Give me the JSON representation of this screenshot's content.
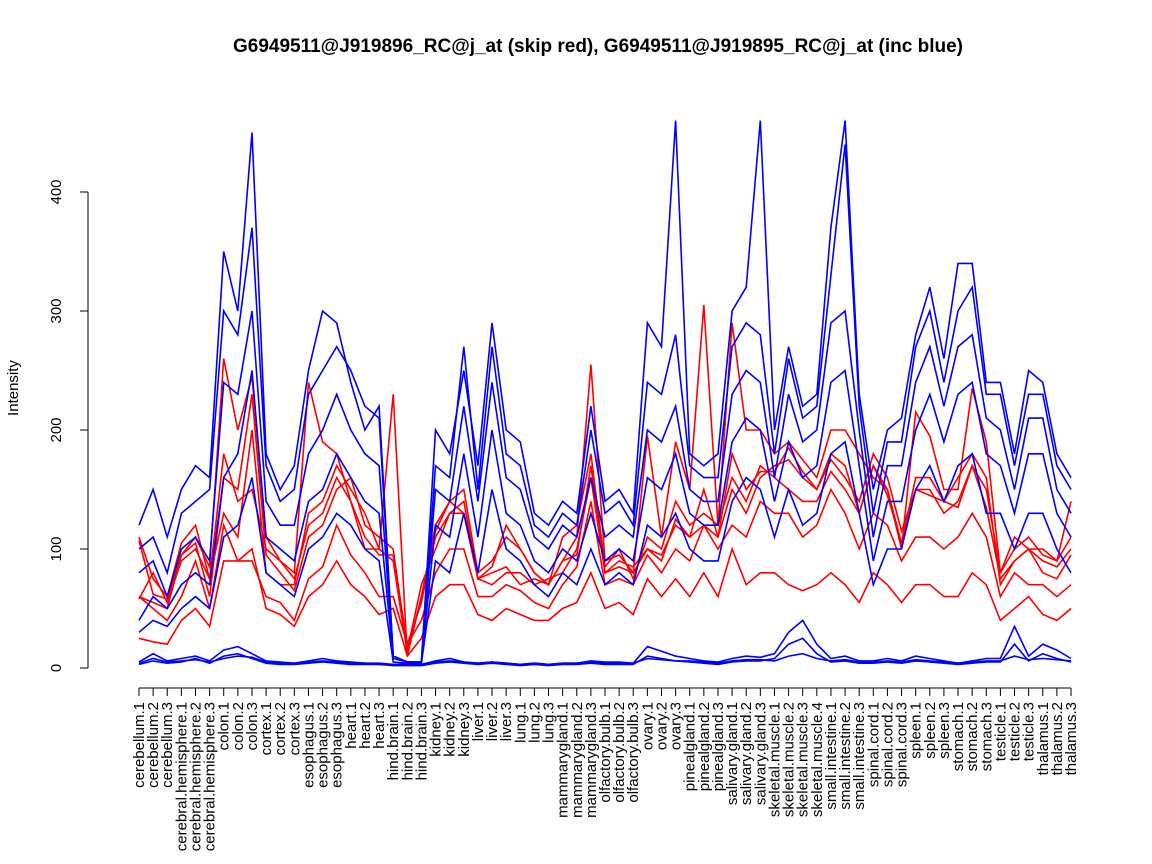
{
  "chart_data": {
    "type": "line",
    "title": "G6949511@J919896_RC@j_at (skip red), G6949511@J919895_RC@j_at (inc blue)",
    "xlabel": "",
    "ylabel": "Intensity",
    "ylim": [
      0,
      470
    ],
    "yticks": [
      0,
      100,
      200,
      300,
      400
    ],
    "grid": false,
    "colors": {
      "skip": "#ff0000",
      "inc": "#0000ff"
    },
    "categories": [
      "cerebellum.1",
      "cerebellum.2",
      "cerebellum.3",
      "cerebral.hemisphere.1",
      "cerebral.hemisphere.2",
      "cerebral.hemisphere.3",
      "colon.1",
      "colon.2",
      "colon.3",
      "cortex.1",
      "cortex.2",
      "cortex.3",
      "esophagus.1",
      "esophagus.2",
      "esophagus.3",
      "heart.1",
      "heart.2",
      "heart.3",
      "hind.brain.1",
      "hind.brain.2",
      "hind.brain.3",
      "kidney.1",
      "kidney.2",
      "kidney.3",
      "liver.1",
      "liver.2",
      "liver.3",
      "lung.1",
      "lung.2",
      "lung.3",
      "mammarygland.1",
      "mammarygland.2",
      "mammarygland.3",
      "olfactory.bulb.1",
      "olfactory.bulb.2",
      "olfactory.bulb.3",
      "ovary.1",
      "ovary.2",
      "ovary.3",
      "pinealgland.1",
      "pinealgland.2",
      "pinealgland.3",
      "salivary.gland.1",
      "salivary.gland.2",
      "salivary.gland.3",
      "skeletal.muscle.1",
      "skeletal.muscle.2",
      "skeletal.muscle.3",
      "skeletal.muscle.4",
      "small.intestine.1",
      "small.intestine.2",
      "small.intestine.3",
      "spinal.cord.1",
      "spinal.cord.2",
      "spinal.cord.3",
      "spleen.1",
      "spleen.2",
      "spleen.3",
      "stomach.1",
      "stomach.2",
      "stomach.3",
      "testicle.1",
      "testicle.2",
      "testicle.3",
      "thalamus.1",
      "thalamus.2",
      "thalamus.3"
    ],
    "series": [
      {
        "group": "skip",
        "values": [
          107,
          62,
          58,
          95,
          105,
          60,
          160,
          150,
          230,
          95,
          80,
          65,
          110,
          120,
          150,
          160,
          120,
          110,
          100,
          15,
          70,
          100,
          130,
          140,
          75,
          70,
          80,
          80,
          70,
          75,
          80,
          100,
          160,
          80,
          90,
          85,
          100,
          95,
          120,
          110,
          120,
          110,
          150,
          130,
          160,
          170,
          175,
          160,
          150,
          175,
          160,
          140,
          180,
          160,
          115,
          150,
          150,
          130,
          140,
          170,
          150,
          80,
          100,
          110,
          95,
          90,
          110
        ]
      },
      {
        "group": "skip",
        "values": [
          58,
          80,
          55,
          90,
          100,
          75,
          130,
          110,
          200,
          80,
          70,
          70,
          130,
          140,
          170,
          150,
          130,
          100,
          90,
          12,
          60,
          120,
          140,
          150,
          80,
          90,
          110,
          100,
          80,
          70,
          110,
          120,
          180,
          85,
          100,
          75,
          110,
          100,
          140,
          120,
          130,
          120,
          160,
          140,
          170,
          160,
          150,
          140,
          140,
          165,
          150,
          130,
          170,
          150,
          105,
          160,
          160,
          140,
          160,
          180,
          160,
          70,
          90,
          100,
          90,
          85,
          100
        ]
      },
      {
        "group": "skip",
        "values": [
          60,
          55,
          50,
          95,
          110,
          85,
          260,
          200,
          245,
          110,
          90,
          80,
          240,
          190,
          180,
          140,
          100,
          100,
          230,
          10,
          60,
          110,
          130,
          130,
          75,
          85,
          120,
          100,
          80,
          70,
          90,
          110,
          255,
          90,
          95,
          80,
          195,
          110,
          190,
          150,
          305,
          120,
          290,
          200,
          200,
          180,
          190,
          175,
          160,
          200,
          200,
          180,
          160,
          150,
          100,
          215,
          195,
          150,
          150,
          235,
          190,
          80,
          110,
          100,
          100,
          90,
          140
        ]
      },
      {
        "group": "skip",
        "values": [
          110,
          75,
          60,
          105,
          120,
          75,
          180,
          140,
          150,
          100,
          90,
          75,
          120,
          130,
          160,
          140,
          110,
          95,
          95,
          20,
          55,
          115,
          140,
          130,
          75,
          80,
          85,
          70,
          75,
          70,
          90,
          95,
          170,
          80,
          85,
          80,
          100,
          90,
          125,
          110,
          150,
          110,
          180,
          150,
          165,
          165,
          185,
          165,
          150,
          180,
          170,
          130,
          170,
          145,
          105,
          150,
          145,
          140,
          135,
          170,
          135,
          75,
          90,
          100,
          80,
          75,
          95
        ]
      },
      {
        "group": "skip",
        "values": [
          60,
          50,
          40,
          60,
          90,
          50,
          120,
          90,
          90,
          60,
          55,
          40,
          75,
          85,
          120,
          95,
          80,
          60,
          60,
          20,
          40,
          80,
          100,
          100,
          60,
          60,
          70,
          65,
          55,
          50,
          70,
          85,
          140,
          70,
          75,
          70,
          95,
          80,
          100,
          90,
          120,
          100,
          120,
          110,
          140,
          130,
          130,
          110,
          120,
          150,
          130,
          100,
          130,
          120,
          90,
          110,
          110,
          100,
          110,
          130,
          110,
          60,
          80,
          70,
          70,
          60,
          70
        ]
      },
      {
        "group": "skip",
        "values": [
          25,
          22,
          20,
          40,
          50,
          35,
          90,
          90,
          100,
          50,
          45,
          35,
          60,
          70,
          90,
          70,
          60,
          45,
          50,
          10,
          25,
          60,
          70,
          70,
          45,
          40,
          50,
          45,
          40,
          40,
          50,
          55,
          80,
          50,
          55,
          45,
          75,
          60,
          75,
          60,
          80,
          60,
          100,
          70,
          80,
          80,
          70,
          65,
          70,
          80,
          70,
          55,
          80,
          70,
          55,
          70,
          70,
          60,
          60,
          80,
          70,
          40,
          50,
          60,
          45,
          40,
          50
        ]
      },
      {
        "group": "inc",
        "values": [
          120,
          150,
          110,
          150,
          170,
          160,
          350,
          300,
          450,
          180,
          150,
          170,
          250,
          300,
          290,
          240,
          200,
          220,
          10,
          5,
          5,
          200,
          180,
          250,
          170,
          290,
          200,
          190,
          130,
          120,
          140,
          130,
          220,
          140,
          150,
          130,
          290,
          270,
          460,
          180,
          170,
          180,
          300,
          320,
          460,
          200,
          270,
          220,
          230,
          370,
          460,
          230,
          150,
          200,
          210,
          280,
          320,
          260,
          340,
          340,
          240,
          240,
          180,
          250,
          240,
          180,
          160
        ]
      },
      {
        "group": "inc",
        "values": [
          100,
          110,
          80,
          130,
          140,
          150,
          300,
          280,
          370,
          170,
          140,
          150,
          230,
          250,
          270,
          250,
          220,
          210,
          10,
          5,
          5,
          170,
          160,
          270,
          150,
          270,
          180,
          170,
          120,
          110,
          130,
          120,
          200,
          130,
          140,
          120,
          240,
          230,
          280,
          170,
          160,
          160,
          270,
          290,
          280,
          180,
          260,
          210,
          220,
          330,
          440,
          220,
          130,
          190,
          190,
          270,
          300,
          240,
          300,
          320,
          230,
          230,
          170,
          230,
          230,
          170,
          150
        ]
      },
      {
        "group": "inc",
        "values": [
          80,
          90,
          60,
          100,
          110,
          90,
          240,
          230,
          300,
          140,
          120,
          120,
          180,
          200,
          230,
          200,
          180,
          170,
          10,
          5,
          5,
          150,
          140,
          220,
          140,
          240,
          160,
          150,
          110,
          100,
          120,
          110,
          160,
          110,
          120,
          110,
          200,
          190,
          220,
          150,
          140,
          140,
          230,
          250,
          240,
          160,
          230,
          190,
          200,
          290,
          300,
          200,
          110,
          170,
          170,
          240,
          270,
          220,
          270,
          280,
          210,
          200,
          150,
          210,
          210,
          150,
          130
        ]
      },
      {
        "group": "inc",
        "values": [
          40,
          60,
          50,
          70,
          80,
          70,
          160,
          180,
          250,
          110,
          100,
          90,
          140,
          150,
          180,
          160,
          140,
          130,
          8,
          5,
          5,
          120,
          110,
          180,
          110,
          200,
          130,
          120,
          90,
          80,
          100,
          90,
          130,
          90,
          100,
          90,
          160,
          150,
          180,
          130,
          120,
          120,
          190,
          210,
          200,
          140,
          190,
          160,
          170,
          240,
          250,
          170,
          90,
          140,
          140,
          200,
          230,
          190,
          230,
          240,
          180,
          170,
          130,
          180,
          180,
          130,
          110
        ]
      },
      {
        "group": "inc",
        "values": [
          30,
          40,
          35,
          50,
          60,
          50,
          110,
          120,
          160,
          80,
          70,
          60,
          100,
          110,
          130,
          120,
          100,
          90,
          5,
          4,
          4,
          90,
          80,
          130,
          80,
          150,
          100,
          90,
          70,
          60,
          80,
          70,
          100,
          70,
          80,
          70,
          120,
          110,
          130,
          100,
          90,
          90,
          140,
          160,
          150,
          110,
          150,
          120,
          130,
          180,
          190,
          130,
          70,
          100,
          100,
          150,
          170,
          140,
          170,
          180,
          130,
          130,
          100,
          130,
          130,
          100,
          80
        ]
      },
      {
        "group": "inc",
        "values": [
          5,
          12,
          6,
          8,
          10,
          6,
          15,
          18,
          12,
          6,
          5,
          4,
          6,
          8,
          6,
          5,
          4,
          4,
          3,
          3,
          3,
          6,
          8,
          5,
          4,
          5,
          4,
          3,
          4,
          3,
          4,
          4,
          6,
          5,
          5,
          4,
          18,
          14,
          10,
          8,
          6,
          5,
          8,
          10,
          9,
          12,
          30,
          40,
          20,
          8,
          10,
          6,
          6,
          8,
          6,
          10,
          8,
          6,
          4,
          6,
          8,
          8,
          35,
          10,
          20,
          15,
          8
        ]
      },
      {
        "group": "inc",
        "values": [
          3,
          6,
          4,
          5,
          8,
          4,
          10,
          12,
          8,
          4,
          3,
          3,
          4,
          5,
          4,
          3,
          3,
          3,
          2,
          2,
          2,
          4,
          5,
          4,
          3,
          4,
          3,
          2,
          3,
          2,
          3,
          3,
          4,
          3,
          3,
          3,
          10,
          8,
          6,
          5,
          4,
          3,
          5,
          6,
          6,
          8,
          20,
          25,
          12,
          5,
          6,
          4,
          4,
          5,
          4,
          6,
          5,
          4,
          3,
          4,
          5,
          5,
          20,
          6,
          12,
          8,
          5
        ]
      },
      {
        "group": "inc",
        "values": [
          4,
          8,
          5,
          6,
          7,
          5,
          8,
          10,
          9,
          5,
          4,
          4,
          5,
          6,
          5,
          4,
          4,
          3,
          3,
          3,
          3,
          5,
          6,
          5,
          4,
          5,
          4,
          3,
          4,
          3,
          4,
          4,
          5,
          4,
          4,
          4,
          8,
          7,
          6,
          6,
          5,
          4,
          6,
          7,
          7,
          6,
          10,
          12,
          8,
          6,
          7,
          5,
          5,
          6,
          5,
          7,
          6,
          5,
          4,
          5,
          6,
          6,
          10,
          7,
          8,
          7,
          6
        ]
      }
    ]
  }
}
